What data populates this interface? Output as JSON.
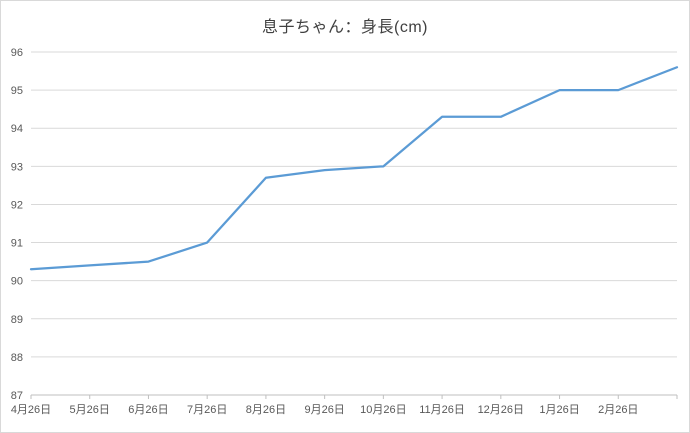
{
  "chart_data": {
    "type": "line",
    "title": "息子ちゃん：身長(cm)",
    "categories": [
      "4月26日",
      "5月26日",
      "6月26日",
      "7月26日",
      "8月26日",
      "9月26日",
      "10月26日",
      "11月26日",
      "12月26日",
      "1月26日",
      "2月26日",
      ""
    ],
    "series": [
      {
        "name": "身長",
        "values": [
          90.3,
          90.4,
          90.5,
          91.0,
          92.7,
          92.9,
          93.0,
          94.3,
          94.3,
          95.0,
          95.0,
          95.6
        ]
      }
    ],
    "ylabel": "",
    "xlabel": "",
    "ylim": [
      87,
      96
    ],
    "ytick_step": 1,
    "ytick_labels": [
      "87",
      "88",
      "89",
      "90",
      "91",
      "92",
      "93",
      "94",
      "95",
      "96"
    ],
    "grid": true,
    "legend_position": "none",
    "line_color": "#5b9bd5",
    "grid_color": "#d9d9d9",
    "axis_line_color": "#bfbfbf",
    "tick_label_color": "#595959",
    "title_color": "#404040"
  }
}
